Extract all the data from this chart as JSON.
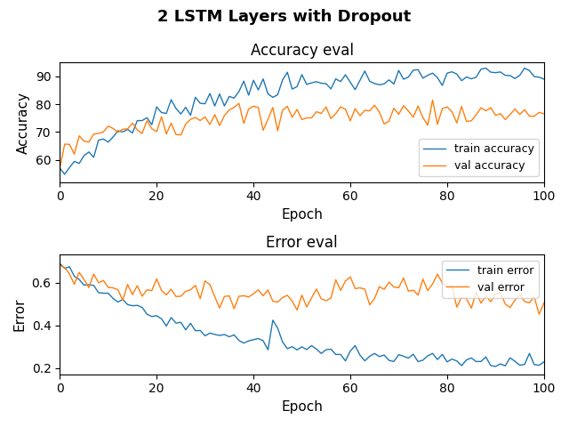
{
  "title": "2 LSTM Layers with Dropout",
  "acc_title": "Accuracy eval",
  "err_title": "Error eval",
  "xlabel": "Epoch",
  "ylabel_acc": "Accuracy",
  "ylabel_err": "Error",
  "legend_acc": [
    "train accuracy",
    "val accuracy"
  ],
  "legend_err": [
    "train error",
    "val error"
  ],
  "train_acc_color": "#1f77b4",
  "val_acc_color": "#ff7f0e",
  "train_err_color": "#1f77b4",
  "val_err_color": "#ff7f0e",
  "seed": 7,
  "n_epochs": 101
}
